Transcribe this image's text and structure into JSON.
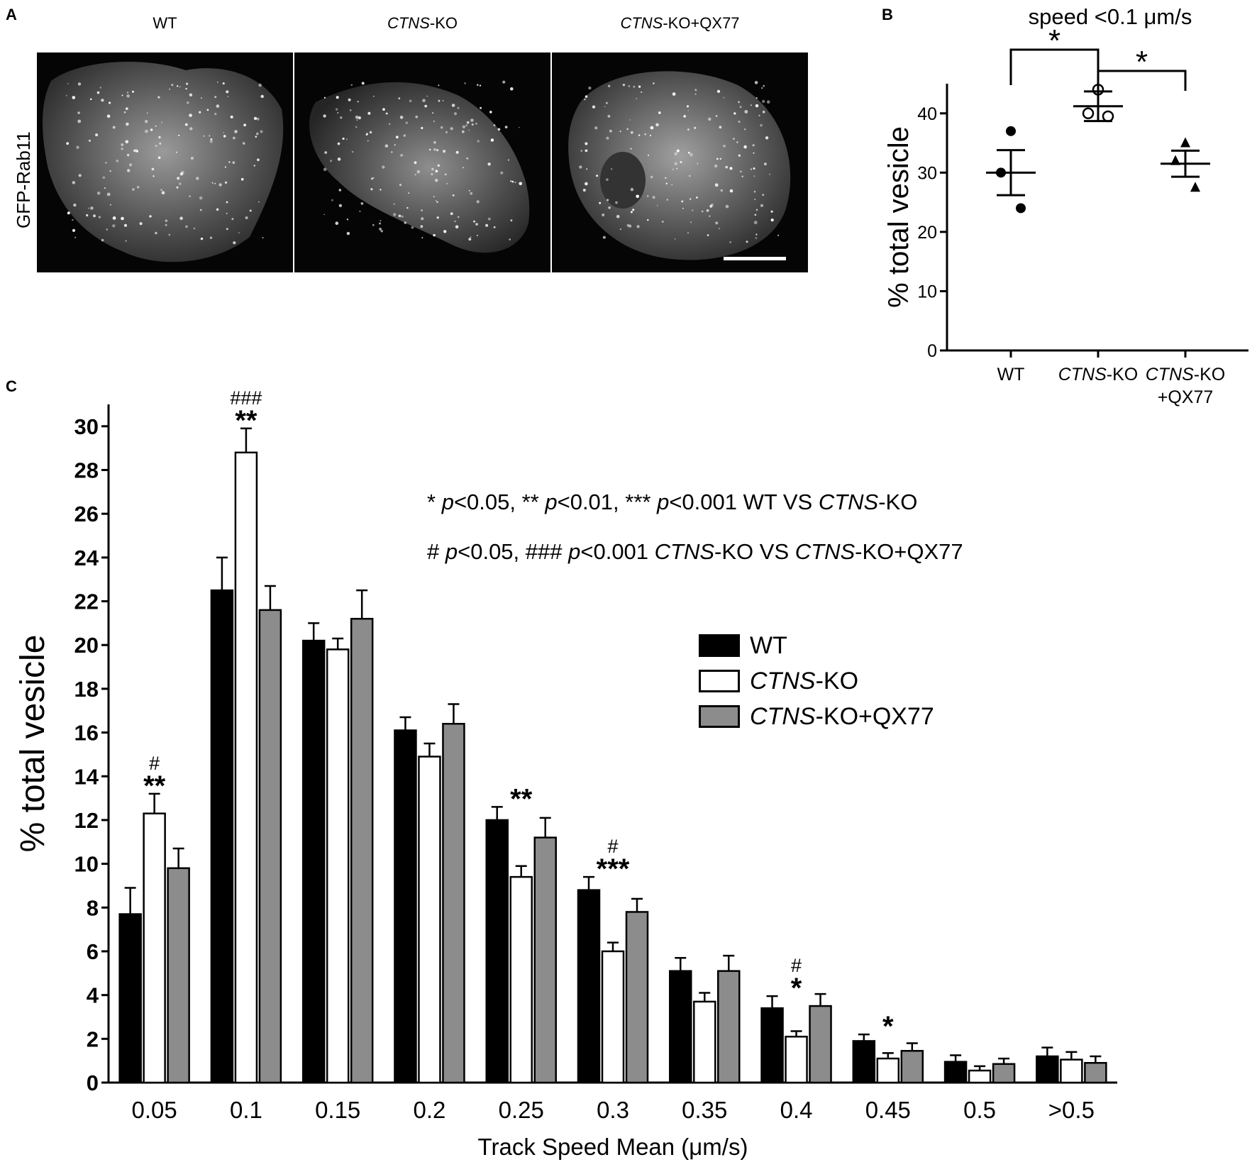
{
  "panel_a": {
    "letter": "A",
    "side_label": "GFP-Rab11",
    "images": [
      {
        "title_plain": "WT",
        "title_italic": "",
        "title_rest": ""
      },
      {
        "title_plain": "",
        "title_italic": "CTNS",
        "title_rest": "-KO"
      },
      {
        "title_plain": "",
        "title_italic": "CTNS",
        "title_rest": "-KO+QX77"
      }
    ]
  },
  "panel_b": {
    "letter": "B",
    "title": "speed <0.1 μm/s",
    "sig_marks": [
      "*",
      "*"
    ]
  },
  "panel_c": {
    "letter": "C",
    "notes": [
      [
        "* ",
        "p",
        "<0.05, ** ",
        "p",
        "<0.01, *** ",
        "p",
        "<0.001 WT VS ",
        "CTNS",
        "-KO"
      ],
      [
        "# ",
        "p",
        "<0.05, ### ",
        "p",
        "<0.001 ",
        "CTNS",
        "-KO VS ",
        "CTNS",
        "-KO+QX77"
      ]
    ],
    "legend": [
      {
        "italic": "",
        "rest": "WT",
        "color": "#000000"
      },
      {
        "italic": "CTNS",
        "rest": "-KO",
        "color": "#ffffff"
      },
      {
        "italic": "CTNS",
        "rest": "-KO+QX77",
        "color": "#8c8c8c"
      }
    ]
  },
  "chart_data": [
    {
      "type": "scatter",
      "panel": "B",
      "title": "speed <0.1 μm/s",
      "ylabel": "% total vesicle",
      "ylim": [
        0,
        45
      ],
      "yticks": [
        0,
        10,
        20,
        30,
        40
      ],
      "categories": [
        "WT",
        "CTNS-KO",
        "CTNS-KO +QX77"
      ],
      "category_labels": [
        {
          "italic": "",
          "rest": "WT",
          "line2": ""
        },
        {
          "italic": "CTNS",
          "rest": "-KO",
          "line2": ""
        },
        {
          "italic": "CTNS",
          "rest": "-KO",
          "line2": "+QX77"
        }
      ],
      "series": [
        {
          "name": "WT",
          "marker": "filled-circle",
          "points": [
            37,
            30,
            24
          ],
          "mean": 30,
          "sem": 3.8
        },
        {
          "name": "CTNS-KO",
          "marker": "open-circle",
          "points": [
            44,
            40,
            39.5
          ],
          "mean": 41.2,
          "sem": 2.5
        },
        {
          "name": "CTNS-KO+QX77",
          "marker": "filled-triangle",
          "points": [
            35,
            32,
            27.5
          ],
          "mean": 31.5,
          "sem": 2.2
        }
      ],
      "significance": [
        {
          "from": 0,
          "to": 1,
          "label": "*"
        },
        {
          "from": 1,
          "to": 2,
          "label": "*"
        }
      ]
    },
    {
      "type": "bar",
      "panel": "C",
      "xlabel": "Track Speed Mean (μm/s)",
      "ylabel": "% total vesicle",
      "ylim": [
        0,
        31
      ],
      "yticks": [
        0,
        2,
        4,
        6,
        8,
        10,
        12,
        14,
        16,
        18,
        20,
        22,
        24,
        26,
        28,
        30
      ],
      "categories": [
        "0.05",
        "0.1",
        "0.15",
        "0.2",
        "0.25",
        "0.3",
        "0.35",
        "0.4",
        "0.45",
        "0.5",
        ">0.5"
      ],
      "series": [
        {
          "name": "WT",
          "color": "#000000",
          "values": [
            7.7,
            22.5,
            20.2,
            16.1,
            12.0,
            8.8,
            5.1,
            3.4,
            1.9,
            0.95,
            1.2
          ],
          "errors": [
            1.2,
            1.5,
            0.8,
            0.6,
            0.6,
            0.6,
            0.6,
            0.55,
            0.3,
            0.3,
            0.4
          ]
        },
        {
          "name": "CTNS-KO",
          "color": "#ffffff",
          "values": [
            12.3,
            28.8,
            19.8,
            14.9,
            9.4,
            6.0,
            3.7,
            2.1,
            1.1,
            0.55,
            1.05
          ],
          "errors": [
            0.9,
            1.1,
            0.5,
            0.6,
            0.5,
            0.4,
            0.4,
            0.25,
            0.25,
            0.2,
            0.35
          ]
        },
        {
          "name": "CTNS-KO+QX77",
          "color": "#8c8c8c",
          "values": [
            9.8,
            21.6,
            21.2,
            16.4,
            11.2,
            7.8,
            5.1,
            3.5,
            1.45,
            0.85,
            0.9
          ],
          "errors": [
            0.9,
            1.1,
            1.3,
            0.9,
            0.9,
            0.6,
            0.7,
            0.55,
            0.35,
            0.25,
            0.3
          ]
        }
      ],
      "annotations": [
        {
          "category": 0,
          "stars": "**",
          "hash": "#"
        },
        {
          "category": 1,
          "stars": "**",
          "hash": "###"
        },
        {
          "category": 4,
          "stars": "**",
          "hash": ""
        },
        {
          "category": 5,
          "stars": "***",
          "hash": "#"
        },
        {
          "category": 7,
          "stars": "*",
          "hash": "#"
        },
        {
          "category": 8,
          "stars": "*",
          "hash": ""
        }
      ]
    }
  ]
}
